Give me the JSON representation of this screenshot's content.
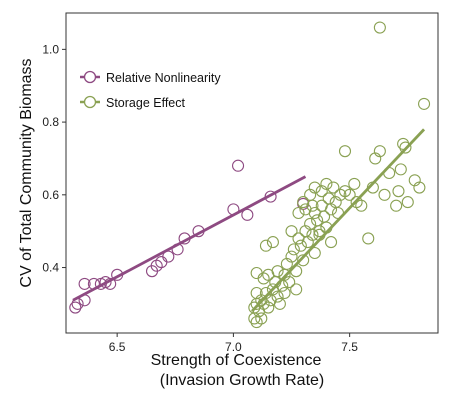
{
  "chart_data": {
    "type": "scatter",
    "xlabel_line1": "Strength of Coexistence",
    "xlabel_line2": "(Invasion Growth Rate)",
    "ylabel": "CV of Total Community Biomass",
    "xlim": [
      6.28,
      7.88
    ],
    "ylim": [
      0.22,
      1.1
    ],
    "x_ticks": [
      6.5,
      7.0,
      7.5
    ],
    "x_tick_labels": [
      "6.5",
      "7.0",
      "7.5"
    ],
    "y_ticks": [
      0.4,
      0.6,
      0.8,
      1.0
    ],
    "y_tick_labels": [
      "0.4",
      "0.6",
      "0.8",
      "1.0"
    ],
    "grid": false,
    "legend_position": "top-left",
    "series": [
      {
        "name": "Relative Nonlinearity",
        "color": "#8e4a82",
        "fit": {
          "x": [
            6.31,
            7.31
          ],
          "y": [
            0.31,
            0.65
          ]
        },
        "points": [
          [
            6.32,
            0.29
          ],
          [
            6.33,
            0.3
          ],
          [
            6.36,
            0.31
          ],
          [
            6.36,
            0.355
          ],
          [
            6.4,
            0.355
          ],
          [
            6.43,
            0.355
          ],
          [
            6.45,
            0.36
          ],
          [
            6.47,
            0.355
          ],
          [
            6.5,
            0.38
          ],
          [
            6.65,
            0.39
          ],
          [
            6.67,
            0.405
          ],
          [
            6.69,
            0.415
          ],
          [
            6.72,
            0.43
          ],
          [
            6.76,
            0.45
          ],
          [
            6.79,
            0.48
          ],
          [
            6.85,
            0.5
          ],
          [
            7.0,
            0.56
          ],
          [
            7.06,
            0.545
          ],
          [
            7.02,
            0.68
          ],
          [
            7.16,
            0.595
          ],
          [
            7.3,
            0.575
          ]
        ]
      },
      {
        "name": "Storage Effect",
        "color": "#8aa153",
        "fit": {
          "x": [
            7.08,
            7.82
          ],
          "y": [
            0.28,
            0.78
          ]
        },
        "points": [
          [
            7.09,
            0.26
          ],
          [
            7.1,
            0.25
          ],
          [
            7.12,
            0.26
          ],
          [
            7.09,
            0.29
          ],
          [
            7.1,
            0.3
          ],
          [
            7.11,
            0.28
          ],
          [
            7.12,
            0.31
          ],
          [
            7.1,
            0.33
          ],
          [
            7.13,
            0.3
          ],
          [
            7.14,
            0.33
          ],
          [
            7.15,
            0.29
          ],
          [
            7.16,
            0.31
          ],
          [
            7.17,
            0.34
          ],
          [
            7.13,
            0.37
          ],
          [
            7.15,
            0.38
          ],
          [
            7.18,
            0.36
          ],
          [
            7.19,
            0.32
          ],
          [
            7.2,
            0.3
          ],
          [
            7.21,
            0.35
          ],
          [
            7.1,
            0.385
          ],
          [
            7.14,
            0.46
          ],
          [
            7.17,
            0.47
          ],
          [
            7.22,
            0.38
          ],
          [
            7.23,
            0.41
          ],
          [
            7.24,
            0.36
          ],
          [
            7.25,
            0.43
          ],
          [
            7.26,
            0.45
          ],
          [
            7.27,
            0.39
          ],
          [
            7.28,
            0.48
          ],
          [
            7.29,
            0.46
          ],
          [
            7.3,
            0.42
          ],
          [
            7.31,
            0.5
          ],
          [
            7.32,
            0.47
          ],
          [
            7.33,
            0.52
          ],
          [
            7.34,
            0.49
          ],
          [
            7.35,
            0.55
          ],
          [
            7.36,
            0.53
          ],
          [
            7.37,
            0.5
          ],
          [
            7.38,
            0.57
          ],
          [
            7.39,
            0.54
          ],
          [
            7.4,
            0.51
          ],
          [
            7.41,
            0.59
          ],
          [
            7.42,
            0.56
          ],
          [
            7.43,
            0.62
          ],
          [
            7.44,
            0.58
          ],
          [
            7.45,
            0.55
          ],
          [
            7.46,
            0.6
          ],
          [
            7.3,
            0.58
          ],
          [
            7.33,
            0.6
          ],
          [
            7.35,
            0.62
          ],
          [
            7.28,
            0.55
          ],
          [
            7.31,
            0.56
          ],
          [
            7.34,
            0.57
          ],
          [
            7.38,
            0.61
          ],
          [
            7.48,
            0.61
          ],
          [
            7.5,
            0.6
          ],
          [
            7.52,
            0.63
          ],
          [
            7.48,
            0.72
          ],
          [
            7.53,
            0.58
          ],
          [
            7.55,
            0.57
          ],
          [
            7.58,
            0.48
          ],
          [
            7.6,
            0.62
          ],
          [
            7.61,
            0.7
          ],
          [
            7.63,
            0.72
          ],
          [
            7.65,
            0.6
          ],
          [
            7.67,
            0.66
          ],
          [
            7.7,
            0.57
          ],
          [
            7.71,
            0.61
          ],
          [
            7.72,
            0.67
          ],
          [
            7.73,
            0.74
          ],
          [
            7.74,
            0.73
          ],
          [
            7.75,
            0.58
          ],
          [
            7.78,
            0.64
          ],
          [
            7.8,
            0.62
          ],
          [
            7.82,
            0.85
          ],
          [
            7.63,
            1.06
          ],
          [
            7.37,
            0.49
          ],
          [
            7.4,
            0.63
          ],
          [
            7.25,
            0.5
          ],
          [
            7.27,
            0.34
          ],
          [
            7.22,
            0.33
          ],
          [
            7.19,
            0.39
          ],
          [
            7.35,
            0.44
          ],
          [
            7.42,
            0.47
          ]
        ]
      }
    ]
  }
}
